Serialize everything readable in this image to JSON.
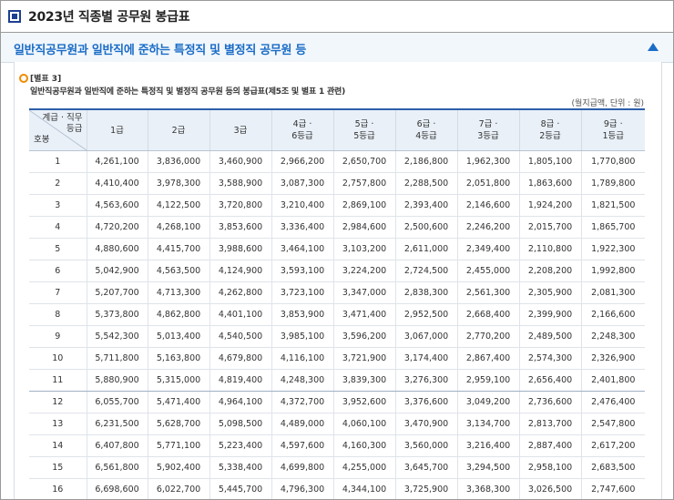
{
  "page": {
    "title": "2023년 직종별 공무원 봉급표"
  },
  "section": {
    "title": "일반직공무원과 일반직에 준하는 특정직 및 별정직 공무원 등",
    "collapse_icon": "triangle-up-icon"
  },
  "table": {
    "label": "[별표 3]",
    "caption": "일반직공무원과 일반직에 준하는 특정직 및 별정직 공무원 등의 봉급표(제5조 및 별표 1 관련)",
    "unit_note": "(월지급액, 단위 : 원)",
    "corner": {
      "top_line1": "계급 · 직무",
      "top_line2": "등급",
      "bottom": "호봉"
    },
    "columns": [
      {
        "line1": "1급",
        "line2": ""
      },
      {
        "line1": "2급",
        "line2": ""
      },
      {
        "line1": "3급",
        "line2": ""
      },
      {
        "line1": "4급 ·",
        "line2": "6등급"
      },
      {
        "line1": "5급 ·",
        "line2": "5등급"
      },
      {
        "line1": "6급 ·",
        "line2": "4등급"
      },
      {
        "line1": "7급 ·",
        "line2": "3등급"
      },
      {
        "line1": "8급 ·",
        "line2": "2등급"
      },
      {
        "line1": "9급 ·",
        "line2": "1등급"
      }
    ],
    "rows": [
      {
        "step": "1",
        "values": [
          "4,261,100",
          "3,836,000",
          "3,460,900",
          "2,966,200",
          "2,650,700",
          "2,186,800",
          "1,962,300",
          "1,805,100",
          "1,770,800"
        ]
      },
      {
        "step": "2",
        "values": [
          "4,410,400",
          "3,978,300",
          "3,588,900",
          "3,087,300",
          "2,757,800",
          "2,288,500",
          "2,051,800",
          "1,863,600",
          "1,789,800"
        ]
      },
      {
        "step": "3",
        "values": [
          "4,563,600",
          "4,122,500",
          "3,720,800",
          "3,210,400",
          "2,869,100",
          "2,393,400",
          "2,146,600",
          "1,924,200",
          "1,821,500"
        ]
      },
      {
        "step": "4",
        "values": [
          "4,720,200",
          "4,268,100",
          "3,853,600",
          "3,336,400",
          "2,984,600",
          "2,500,600",
          "2,246,200",
          "2,015,700",
          "1,865,700"
        ]
      },
      {
        "step": "5",
        "values": [
          "4,880,600",
          "4,415,700",
          "3,988,600",
          "3,464,100",
          "3,103,200",
          "2,611,000",
          "2,349,400",
          "2,110,800",
          "1,922,300"
        ]
      },
      {
        "step": "6",
        "values": [
          "5,042,900",
          "4,563,500",
          "4,124,900",
          "3,593,100",
          "3,224,200",
          "2,724,500",
          "2,455,000",
          "2,208,200",
          "1,992,800"
        ]
      },
      {
        "step": "7",
        "values": [
          "5,207,700",
          "4,713,300",
          "4,262,800",
          "3,723,100",
          "3,347,000",
          "2,838,300",
          "2,561,300",
          "2,305,900",
          "2,081,300"
        ]
      },
      {
        "step": "8",
        "values": [
          "5,373,800",
          "4,862,800",
          "4,401,100",
          "3,853,900",
          "3,471,400",
          "2,952,500",
          "2,668,400",
          "2,399,900",
          "2,166,600"
        ]
      },
      {
        "step": "9",
        "values": [
          "5,542,300",
          "5,013,400",
          "4,540,500",
          "3,985,100",
          "3,596,200",
          "3,067,000",
          "2,770,200",
          "2,489,500",
          "2,248,300"
        ]
      },
      {
        "step": "10",
        "values": [
          "5,711,800",
          "5,163,800",
          "4,679,800",
          "4,116,100",
          "3,721,900",
          "3,174,400",
          "2,867,400",
          "2,574,300",
          "2,326,900"
        ]
      },
      {
        "step": "11",
        "values": [
          "5,880,900",
          "5,315,000",
          "4,819,400",
          "4,248,300",
          "3,839,300",
          "3,276,300",
          "2,959,100",
          "2,656,400",
          "2,401,800"
        ]
      },
      {
        "step": "12",
        "values": [
          "6,055,700",
          "5,471,400",
          "4,964,100",
          "4,372,700",
          "3,952,600",
          "3,376,600",
          "3,049,200",
          "2,736,600",
          "2,476,400"
        ]
      },
      {
        "step": "13",
        "values": [
          "6,231,500",
          "5,628,700",
          "5,098,500",
          "4,489,000",
          "4,060,100",
          "3,470,900",
          "3,134,700",
          "2,813,700",
          "2,547,800"
        ]
      },
      {
        "step": "14",
        "values": [
          "6,407,800",
          "5,771,100",
          "5,223,400",
          "4,597,600",
          "4,160,300",
          "3,560,000",
          "3,216,400",
          "2,887,400",
          "2,617,200"
        ]
      },
      {
        "step": "15",
        "values": [
          "6,561,800",
          "5,902,400",
          "5,338,400",
          "4,699,800",
          "4,255,000",
          "3,645,700",
          "3,294,500",
          "2,958,100",
          "2,683,500"
        ]
      },
      {
        "step": "16",
        "values": [
          "6,698,600",
          "6,022,700",
          "5,445,700",
          "4,796,300",
          "4,344,100",
          "3,725,900",
          "3,368,300",
          "3,026,500",
          "2,747,600"
        ]
      }
    ]
  }
}
